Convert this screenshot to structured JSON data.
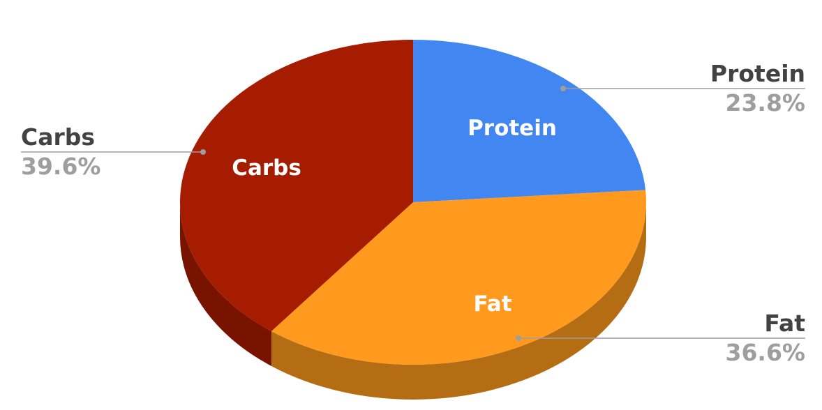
{
  "chart_data": {
    "type": "pie",
    "style": "3d",
    "title": "",
    "start_angle": "top, clockwise",
    "slices": [
      {
        "label": "Protein",
        "value": 23.8,
        "pct_label": "23.8%",
        "color": "#4286f1",
        "side_color": "#2f64b5"
      },
      {
        "label": "Fat",
        "value": 36.6,
        "pct_label": "36.6%",
        "color": "#ff9a1e",
        "side_color": "#b46d12"
      },
      {
        "label": "Carbs",
        "value": 39.6,
        "pct_label": "39.6%",
        "color": "#a61c00",
        "side_color": "#781300"
      }
    ],
    "legend": "none",
    "labels": "inside names and outside name + percent callouts"
  }
}
